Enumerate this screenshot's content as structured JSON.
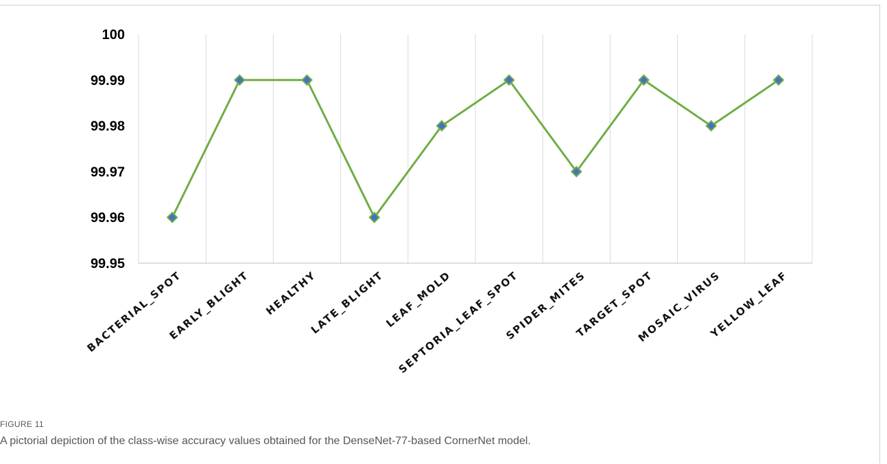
{
  "chart_data": {
    "type": "line",
    "categories": [
      "BACTERIAL_SPOT",
      "EARLY_BLIGHT",
      "HEALTHY",
      "LATE_BLIGHT",
      "LEAF_MOLD",
      "SEPTORIA_LEAF_SPOT",
      "SPIDER_MITES",
      "TARGET_SPOT",
      "MOSAIC_VIRUS",
      "YELLOW_LEAF"
    ],
    "series": [
      {
        "values": [
          99.96,
          99.99,
          99.99,
          99.96,
          99.98,
          99.99,
          99.97,
          99.99,
          99.98,
          99.99
        ]
      }
    ],
    "ylim": [
      99.95,
      100
    ],
    "yticks": [
      "99.95",
      "99.96",
      "99.97",
      "99.98",
      "99.99",
      "100"
    ],
    "title": "",
    "xlabel": "",
    "ylabel": "",
    "grid": "vertical",
    "legend": "none",
    "colors": {
      "line": "#70ad47",
      "marker_fill": "#4472c4",
      "marker_edge": "#70ad47",
      "grid": "#d9d9d9"
    }
  },
  "figure": {
    "label": "FIGURE 11",
    "caption": "A pictorial depiction of the class-wise accuracy values obtained for the DenseNet-77-based CornerNet model."
  }
}
